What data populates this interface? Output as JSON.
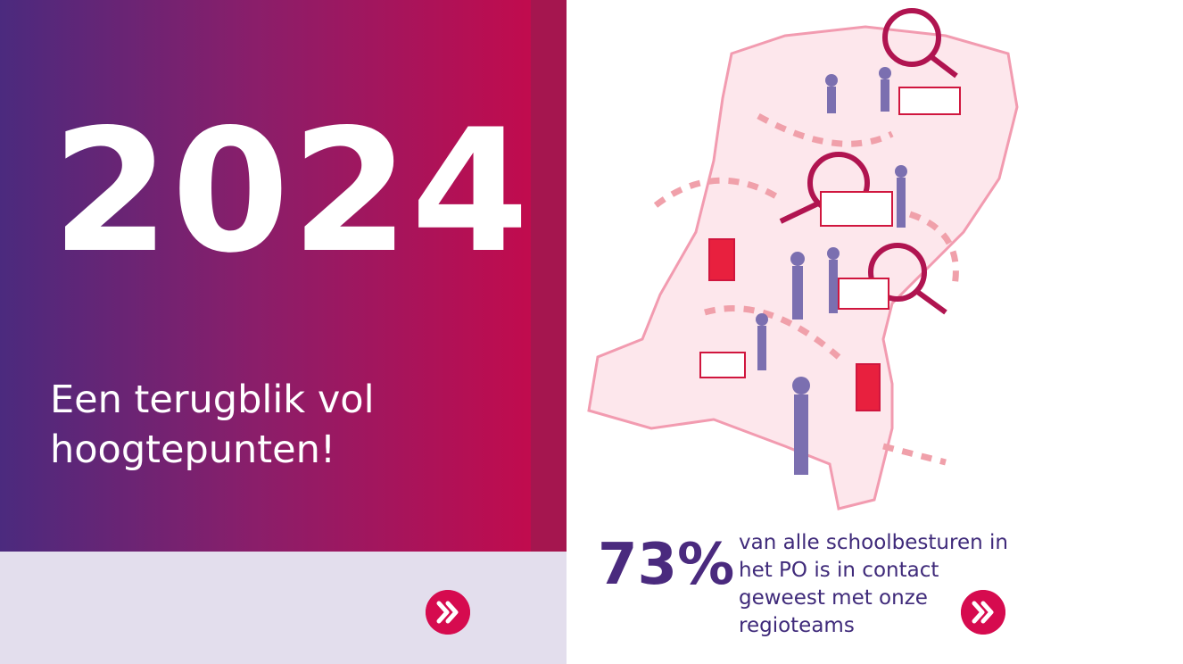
{
  "banner": {
    "year": "2024",
    "subtitle_lines": [
      "Een terugblik vol",
      "hoogtepunten!"
    ]
  },
  "stat": {
    "figure": "73%",
    "description_lines": [
      "van alle schoolbesturen in",
      "het PO is in contact",
      "geweest met onze",
      "regioteams"
    ]
  }
}
